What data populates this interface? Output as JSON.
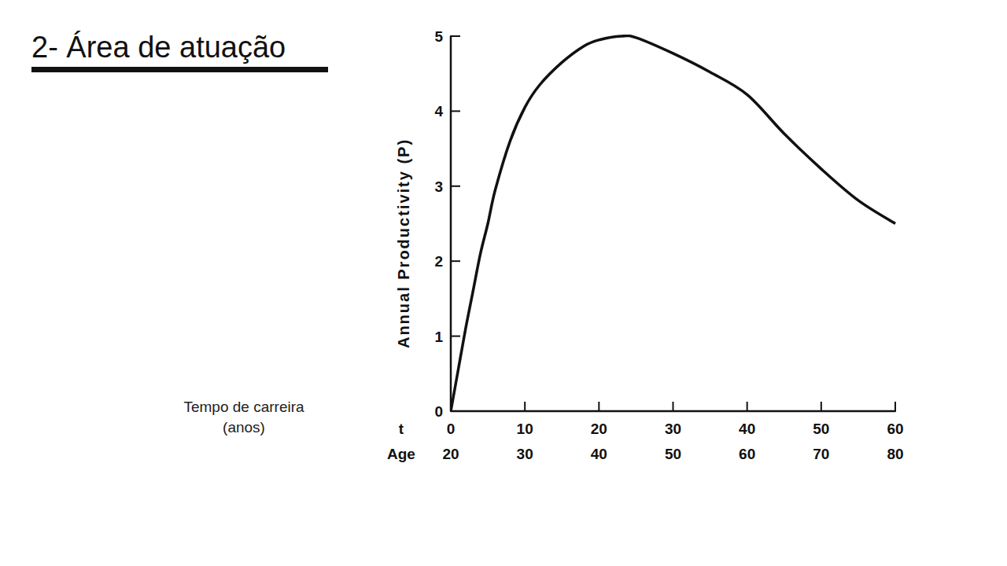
{
  "chart_data": {
    "type": "line",
    "title": "2- Área de atuação",
    "annotation": [
      "Tempo de carreira",
      "(anos)"
    ],
    "y_label": "Annual Productivity (P)",
    "x_label": "t",
    "x2_label": "Age",
    "x": [
      0,
      1,
      2,
      3,
      4,
      5,
      6,
      8,
      10,
      12,
      15,
      18,
      20,
      23,
      25,
      30,
      35,
      40,
      45,
      50,
      55,
      60
    ],
    "values": [
      0,
      0.55,
      1.1,
      1.6,
      2.1,
      2.5,
      2.95,
      3.6,
      4.05,
      4.35,
      4.65,
      4.87,
      4.95,
      5.0,
      4.98,
      4.77,
      4.52,
      4.22,
      3.7,
      3.23,
      2.81,
      2.5
    ],
    "color": "#111111",
    "xlim": [
      0,
      60
    ],
    "xticks": [
      0,
      10,
      20,
      30,
      40,
      50,
      60
    ],
    "x2lim": [
      20,
      80
    ],
    "x2ticks": [
      20,
      30,
      40,
      50,
      60,
      70,
      80
    ],
    "ylim": [
      0,
      5
    ],
    "yticks": [
      0,
      1,
      2,
      3,
      4,
      5
    ],
    "grid": false
  }
}
